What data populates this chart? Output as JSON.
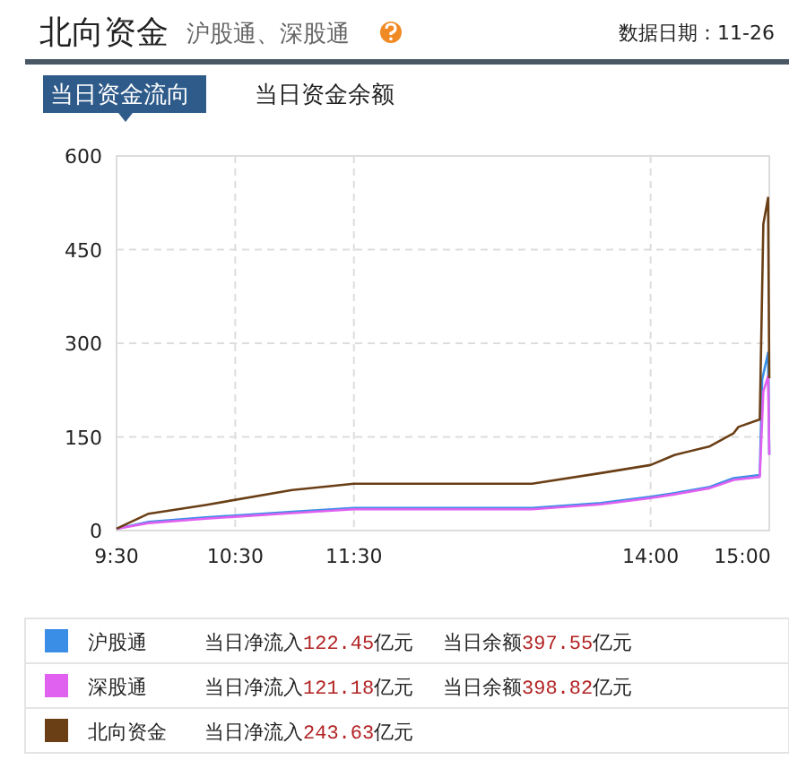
{
  "chart_data": {
    "type": "line",
    "title": "北向资金",
    "subtitle": "沪股通、深股通",
    "annotations": [
      "数据日期：11-26",
      "当日资金流向",
      "当日资金余额",
      "当日净流入122.45亿元",
      "当日余额397.55亿元",
      "当日净流入121.18亿元",
      "当日余额398.82亿元",
      "当日净流入243.63亿元"
    ],
    "xlim": [
      9.5,
      15
    ],
    "xticks": [
      {
        "value": 9.5,
        "label": "9:30"
      },
      {
        "value": 10.5,
        "label": "10:30"
      },
      {
        "value": 11.5,
        "label": "11:30"
      },
      {
        "value": 14,
        "label": "14:00"
      },
      {
        "value": 15,
        "label": "15:00"
      }
    ],
    "ylim": [
      0,
      600
    ],
    "yticks": [
      0,
      150,
      300,
      450,
      600
    ],
    "grid": true,
    "legend": "bottom",
    "marker": "none",
    "line_style": "solid",
    "series": [
      {
        "name": "沪股通",
        "color": "#3a8ee6",
        "x": [
          9.5,
          9.77,
          10.25,
          10.98,
          11.5,
          13,
          13.58,
          14,
          14.2,
          14.5,
          14.7,
          14.92,
          14.94,
          14.99,
          15
        ],
        "values": [
          3,
          14,
          21,
          30,
          36,
          36,
          44,
          54,
          60,
          70,
          84,
          89,
          242,
          285,
          122
        ]
      },
      {
        "name": "深股通",
        "color": "#e060f0",
        "x": [
          9.5,
          9.77,
          10.25,
          10.98,
          11.5,
          13,
          13.58,
          14,
          14.2,
          14.5,
          14.7,
          14.92,
          14.95,
          14.99,
          15
        ],
        "values": [
          3,
          12,
          19,
          28,
          34,
          34,
          42,
          52,
          58,
          68,
          81,
          86,
          223,
          247,
          121
        ]
      },
      {
        "name": "北向资金",
        "color": "#6a3f16",
        "x": [
          9.5,
          9.77,
          10.25,
          10.98,
          11.5,
          13,
          13.58,
          14,
          14.2,
          14.5,
          14.7,
          14.74,
          14.92,
          14.95,
          14.99,
          15
        ],
        "values": [
          3,
          27,
          41,
          65,
          75,
          75,
          92,
          105,
          121,
          135,
          156,
          166,
          178,
          491,
          533,
          244
        ]
      }
    ]
  }
}
